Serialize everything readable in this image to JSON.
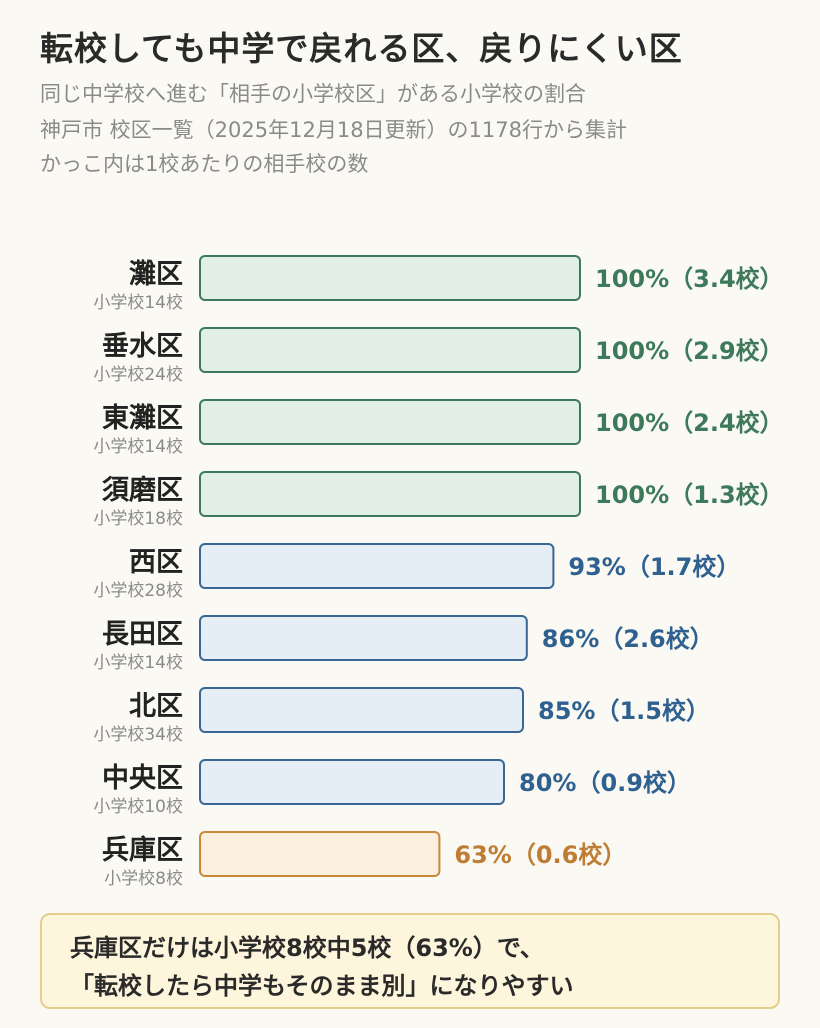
{
  "header": {
    "title": "転校しても中学で戻れる区、戻りにくい区",
    "subtitle_lines": [
      "同じ中学校へ進む「相手の小学校区」がある小学校の割合",
      "神戸市 校区一覧（2025年12月18日更新）の1178行から集計",
      "かっこ内は1校あたりの相手校の数"
    ]
  },
  "colors": {
    "green": {
      "fill": "#e2efe7",
      "stroke": "#3d7a5a",
      "text": "#3d7a5a"
    },
    "blue": {
      "fill": "#e5eef7",
      "stroke": "#3a6791",
      "text": "#2f6190"
    },
    "orange": {
      "fill": "#fbefdf",
      "stroke": "#c9873a",
      "text": "#bf7d33"
    }
  },
  "chart_data": {
    "type": "bar",
    "orientation": "horizontal",
    "unit": "%",
    "xlim": [
      0,
      100
    ],
    "categories": [
      "灘区",
      "垂水区",
      "東灘区",
      "須磨区",
      "西区",
      "長田区",
      "北区",
      "中央区",
      "兵庫区"
    ],
    "school_counts": [
      "小学校14校",
      "小学校24校",
      "小学校14校",
      "小学校18校",
      "小学校28校",
      "小学校14校",
      "小学校34校",
      "小学校10校",
      "小学校8校"
    ],
    "values": [
      100,
      100,
      100,
      100,
      93,
      86,
      85,
      80,
      63
    ],
    "partner_avg": [
      3.4,
      2.9,
      2.4,
      1.3,
      1.7,
      2.6,
      1.5,
      0.9,
      0.6
    ],
    "value_labels": [
      "100%（3.4校）",
      "100%（2.9校）",
      "100%（2.4校）",
      "100%（1.3校）",
      "93%（1.7校）",
      "86%（2.6校）",
      "85%（1.5校）",
      "80%（0.9校）",
      "63%（0.6校）"
    ],
    "color_groups": [
      "green",
      "green",
      "green",
      "green",
      "blue",
      "blue",
      "blue",
      "blue",
      "orange"
    ]
  },
  "note": {
    "line1": "兵庫区だけは小学校8校中5校（63%）で、",
    "line2": "「転校したら中学もそのまま別」になりやすい"
  }
}
